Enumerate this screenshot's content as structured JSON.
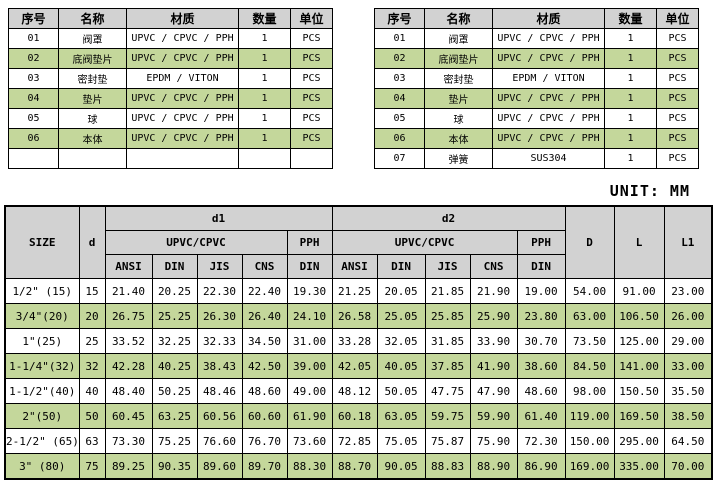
{
  "colors": {
    "header_bg": "#d2d2d2",
    "stripe_green": "#c4d79b",
    "border": "#000000"
  },
  "parts_table": {
    "headers": [
      "序号",
      "名称",
      "材质",
      "数量",
      "单位"
    ],
    "left_rows": [
      [
        "01",
        "阀罩",
        "UPVC / CPVC / PPH",
        "1",
        "PCS"
      ],
      [
        "02",
        "底阀垫片",
        "UPVC / CPVC / PPH",
        "1",
        "PCS"
      ],
      [
        "03",
        "密封垫",
        "EPDM / VITON",
        "1",
        "PCS"
      ],
      [
        "04",
        "垫片",
        "UPVC / CPVC / PPH",
        "1",
        "PCS"
      ],
      [
        "05",
        "球",
        "UPVC / CPVC / PPH",
        "1",
        "PCS"
      ],
      [
        "06",
        "本体",
        "UPVC / CPVC / PPH",
        "1",
        "PCS"
      ],
      [
        "",
        "",
        "",
        "",
        ""
      ]
    ],
    "right_rows": [
      [
        "01",
        "阀罩",
        "UPVC / CPVC / PPH",
        "1",
        "PCS"
      ],
      [
        "02",
        "底阀垫片",
        "UPVC / CPVC / PPH",
        "1",
        "PCS"
      ],
      [
        "03",
        "密封垫",
        "EPDM / VITON",
        "1",
        "PCS"
      ],
      [
        "04",
        "垫片",
        "UPVC / CPVC / PPH",
        "1",
        "PCS"
      ],
      [
        "05",
        "球",
        "UPVC / CPVC / PPH",
        "1",
        "PCS"
      ],
      [
        "06",
        "本体",
        "UPVC / CPVC / PPH",
        "1",
        "PCS"
      ],
      [
        "07",
        "弹簧",
        "SUS304",
        "1",
        "PCS"
      ]
    ]
  },
  "unit_label": "UNIT: MM",
  "dimension_table": {
    "header": {
      "size": "SIZE",
      "d": "d",
      "d1": "d1",
      "d2": "d2",
      "upvc_cpvc": "UPVC/CPVC",
      "pph": "PPH",
      "standards": [
        "ANSI",
        "DIN",
        "JIS",
        "CNS",
        "DIN"
      ],
      "D": "D",
      "L": "L",
      "L1": "L1"
    },
    "rows": [
      [
        "1/2\" (15)",
        "15",
        "21.40",
        "20.25",
        "22.30",
        "22.40",
        "19.30",
        "21.25",
        "20.05",
        "21.85",
        "21.90",
        "19.00",
        "54.00",
        "91.00",
        "23.00"
      ],
      [
        "3/4\"(20)",
        "20",
        "26.75",
        "25.25",
        "26.30",
        "26.40",
        "24.10",
        "26.58",
        "25.05",
        "25.85",
        "25.90",
        "23.80",
        "63.00",
        "106.50",
        "26.00"
      ],
      [
        "1\"(25)",
        "25",
        "33.52",
        "32.25",
        "32.33",
        "34.50",
        "31.00",
        "33.28",
        "32.05",
        "31.85",
        "33.90",
        "30.70",
        "73.50",
        "125.00",
        "29.00"
      ],
      [
        "1-1/4\"(32)",
        "32",
        "42.28",
        "40.25",
        "38.43",
        "42.50",
        "39.00",
        "42.05",
        "40.05",
        "37.85",
        "41.90",
        "38.60",
        "84.50",
        "141.00",
        "33.00"
      ],
      [
        "1-1/2\"(40)",
        "40",
        "48.40",
        "50.25",
        "48.46",
        "48.60",
        "49.00",
        "48.12",
        "50.05",
        "47.75",
        "47.90",
        "48.60",
        "98.00",
        "150.50",
        "35.50"
      ],
      [
        "2\"(50)",
        "50",
        "60.45",
        "63.25",
        "60.56",
        "60.60",
        "61.90",
        "60.18",
        "63.05",
        "59.75",
        "59.90",
        "61.40",
        "119.00",
        "169.50",
        "38.50"
      ],
      [
        "2-1/2\" (65)",
        "63",
        "73.30",
        "75.25",
        "76.60",
        "76.70",
        "73.60",
        "72.85",
        "75.05",
        "75.87",
        "75.90",
        "72.30",
        "150.00",
        "295.00",
        "64.50"
      ],
      [
        "3\" (80)",
        "75",
        "89.25",
        "90.35",
        "89.60",
        "89.70",
        "88.30",
        "88.70",
        "90.05",
        "88.83",
        "88.90",
        "86.90",
        "169.00",
        "335.00",
        "70.00"
      ]
    ]
  }
}
